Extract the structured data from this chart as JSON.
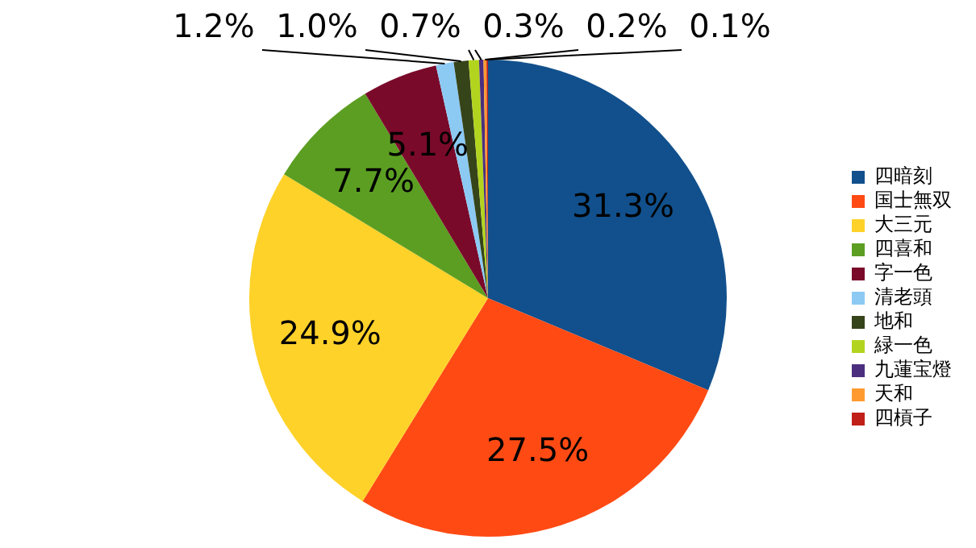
{
  "chart_data": {
    "type": "pie",
    "categories": [
      "四暗刻",
      "国士無双",
      "大三元",
      "四喜和",
      "字一色",
      "清老頭",
      "地和",
      "緑一色",
      "九蓮宝燈",
      "天和",
      "四槓子"
    ],
    "values": [
      31.3,
      27.5,
      24.9,
      7.7,
      5.1,
      1.2,
      1.0,
      0.7,
      0.3,
      0.2,
      0.1
    ],
    "colors": [
      "#11508c",
      "#ff4a14",
      "#ffd22a",
      "#5c9e22",
      "#7a0a2a",
      "#8ccaf4",
      "#36441a",
      "#b3d41e",
      "#4b2f7e",
      "#ff9a30",
      "#c02018"
    ],
    "value_labels": [
      "31.3%",
      "27.5%",
      "24.9%",
      "7.7%",
      "5.1%",
      "1.2%",
      "1.0%",
      "0.7%",
      "0.3%",
      "0.2%",
      "0.1%"
    ],
    "legend": "right"
  }
}
